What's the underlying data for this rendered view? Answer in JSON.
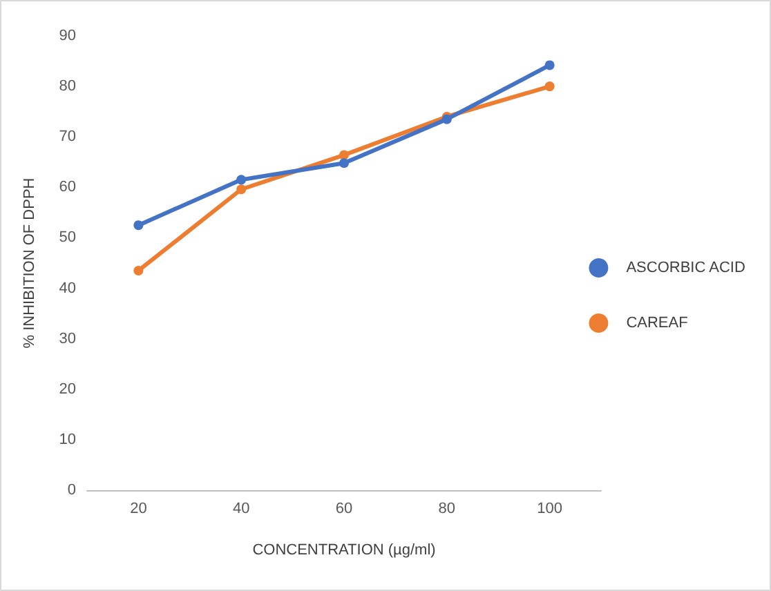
{
  "chart_data": {
    "type": "line",
    "xlabel": "CONCENTRATION (µg/ml)",
    "ylabel": "% INHIBITION OF DPPH",
    "categories": [
      "20",
      "40",
      "60",
      "80",
      "100"
    ],
    "series": [
      {
        "name": "ASCORBIC ACID",
        "color": "#4472c4",
        "values": [
          52.5,
          61.5,
          64.8,
          73.5,
          84.2
        ]
      },
      {
        "name": "CAREAF",
        "color": "#ed7d31",
        "values": [
          43.5,
          59.6,
          66.4,
          74.0,
          80.0
        ]
      }
    ],
    "ylim": [
      0,
      90
    ],
    "yticks": [
      0,
      10,
      20,
      30,
      40,
      50,
      60,
      70,
      80,
      90
    ],
    "grid": false,
    "legend": "right",
    "marker": "circle",
    "line_style": "solid"
  }
}
